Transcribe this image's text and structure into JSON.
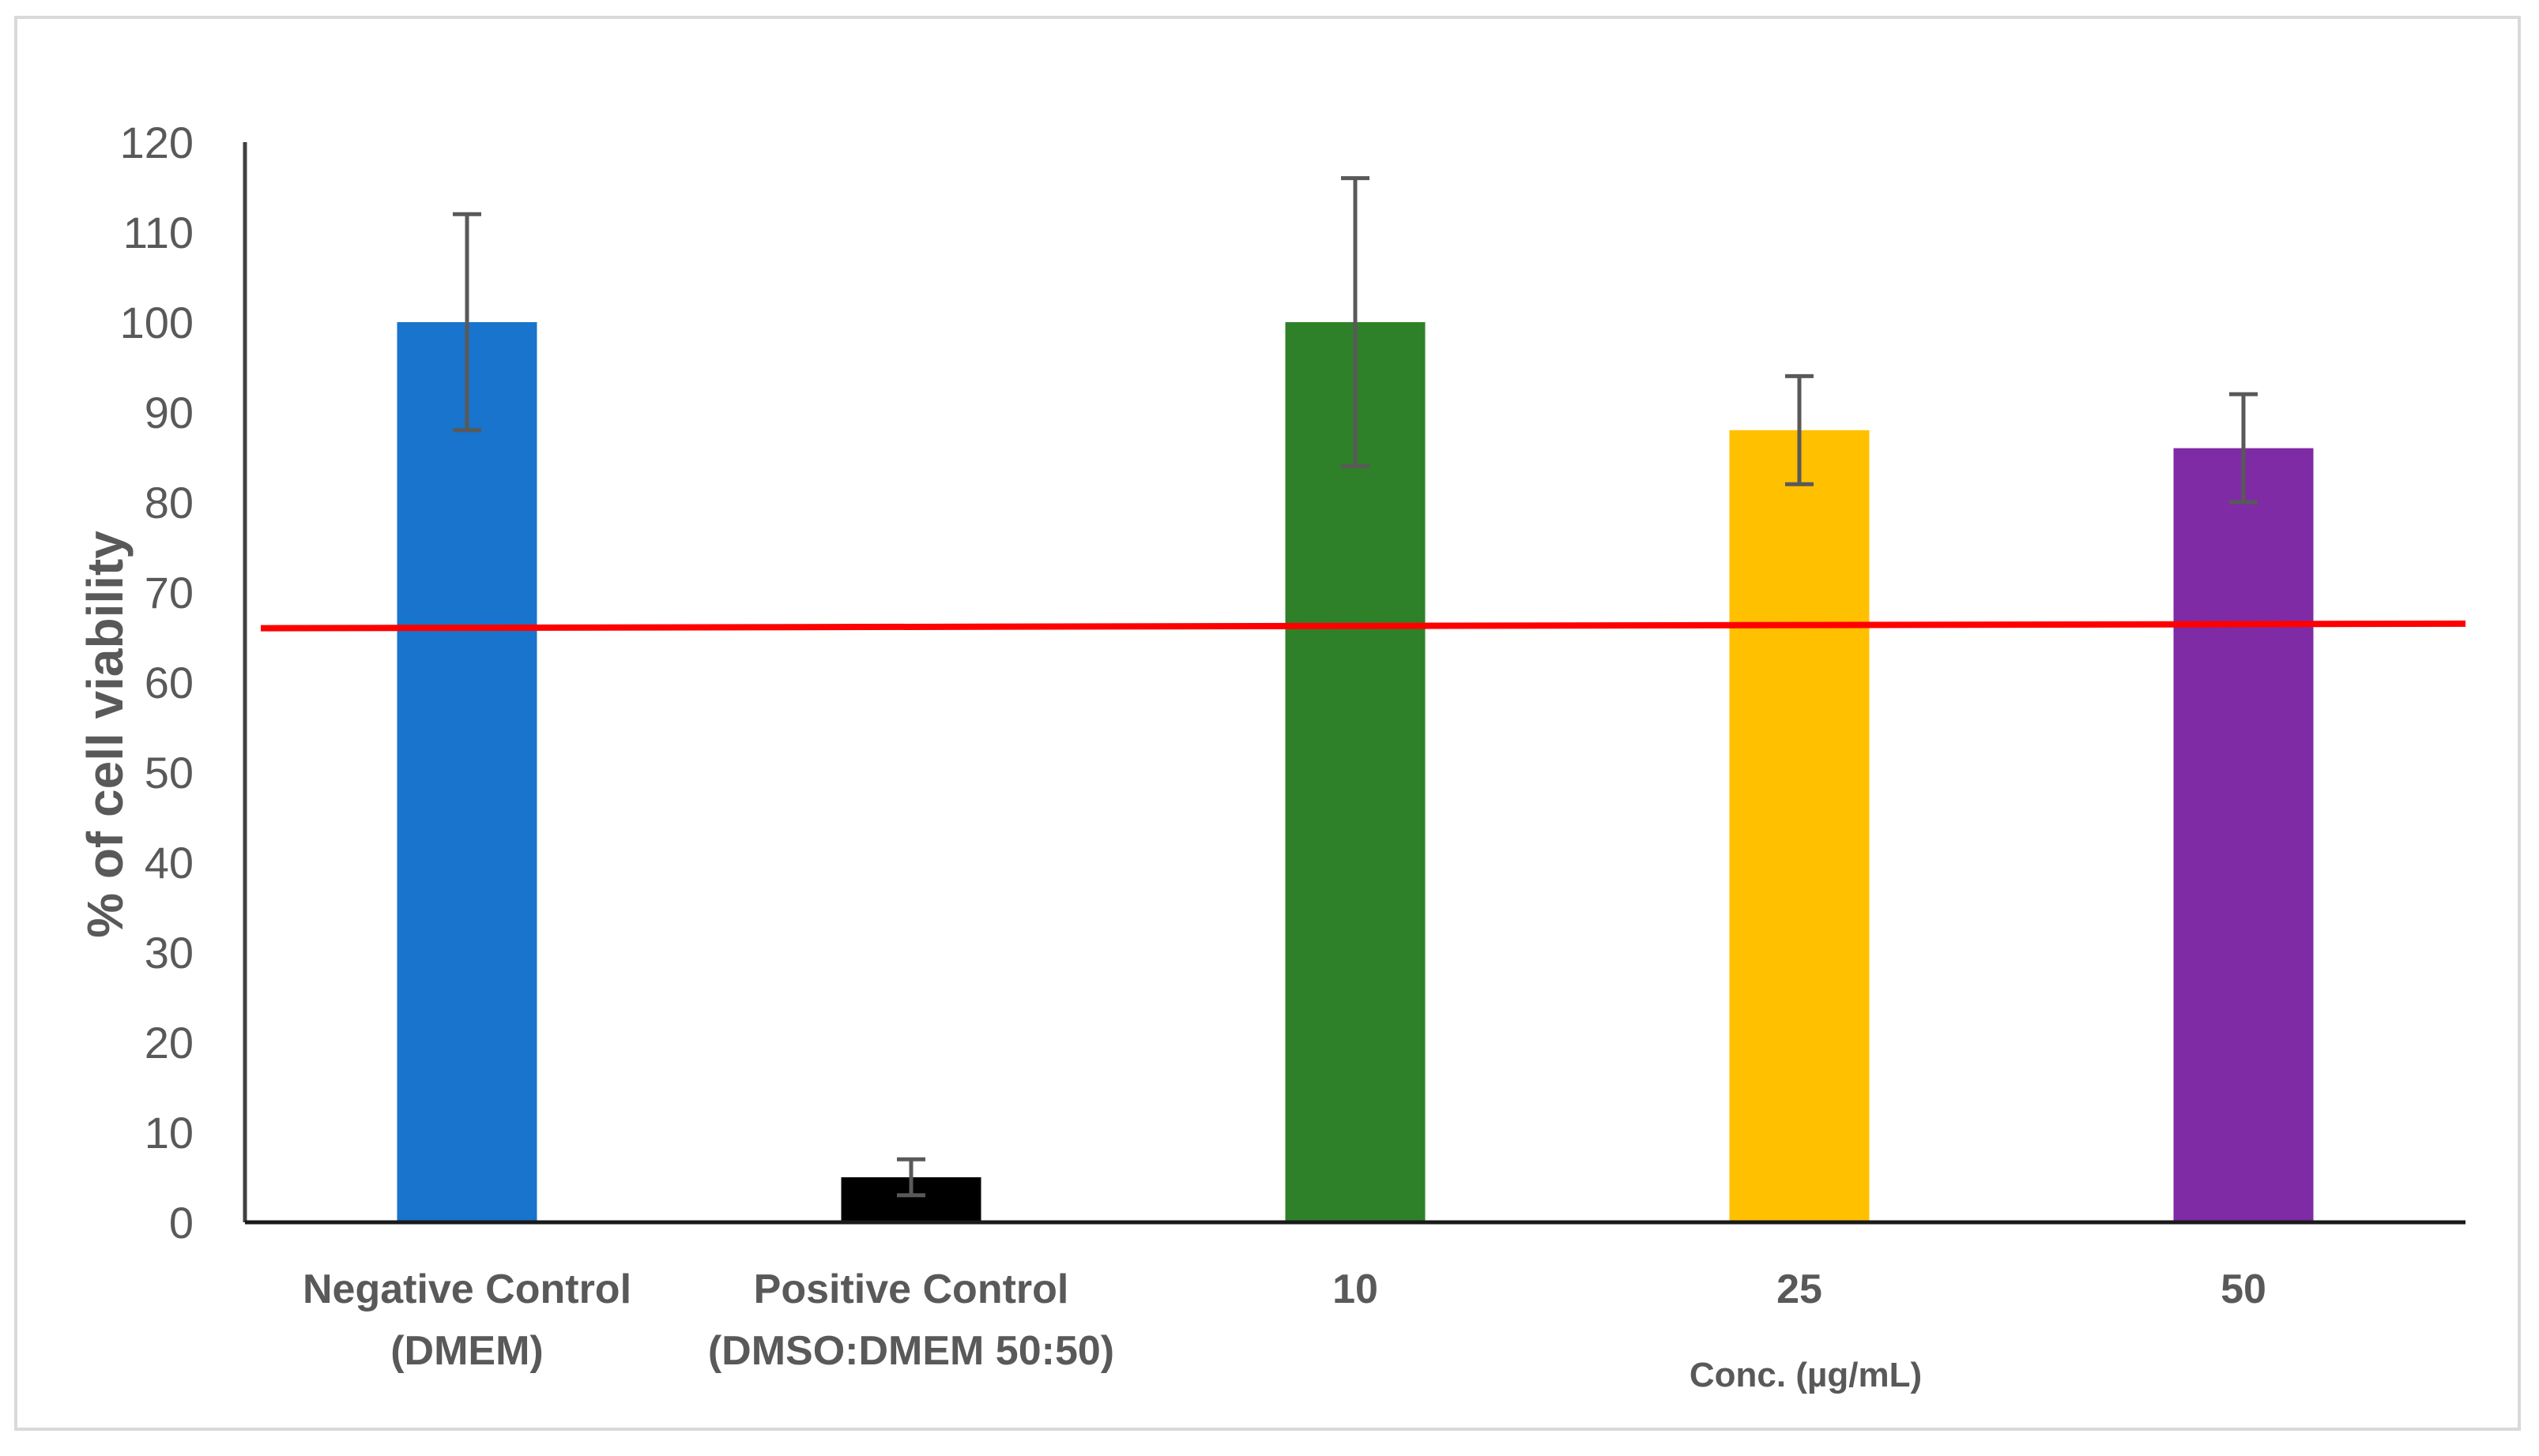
{
  "chart_data": {
    "type": "bar",
    "categories": [
      [
        "Negative  Control",
        "(DMEM)"
      ],
      [
        "Positive  Control",
        "(DMSO:DMEM 50:50)"
      ],
      [
        "10"
      ],
      [
        "25"
      ],
      [
        "50"
      ]
    ],
    "values": [
      100,
      5,
      100,
      88,
      86
    ],
    "error_low": [
      88,
      3,
      84,
      82,
      80
    ],
    "error_high": [
      112,
      7,
      116,
      94,
      92
    ],
    "colors": [
      "#1874cd",
      "#000000",
      "#2e8128",
      "#ffc000",
      "#7f2ba5"
    ],
    "ylabel": "%  of cell viability",
    "xlabel": "Conc. (µg/mL)",
    "ylim": [
      0,
      120
    ],
    "yticks": [
      0,
      10,
      20,
      30,
      40,
      50,
      60,
      70,
      80,
      90,
      100,
      110,
      120
    ],
    "reference_line": {
      "y_start": 66,
      "y_end": 66.5,
      "color": "#ff0000"
    },
    "grid": false,
    "legend": "none"
  }
}
